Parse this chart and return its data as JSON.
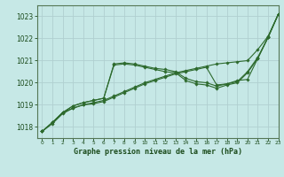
{
  "background_color": "#c6e8e6",
  "grid_color": "#b0d0d0",
  "line_color": "#2d6a2d",
  "text_color": "#1a4a1a",
  "xlabel": "Graphe pression niveau de la mer (hPa)",
  "ylim": [
    1017.5,
    1023.5
  ],
  "xlim": [
    -0.5,
    23
  ],
  "yticks": [
    1018,
    1019,
    1020,
    1021,
    1022,
    1023
  ],
  "xticks": [
    0,
    1,
    2,
    3,
    4,
    5,
    6,
    7,
    8,
    9,
    10,
    11,
    12,
    13,
    14,
    15,
    16,
    17,
    18,
    19,
    20,
    21,
    22,
    23
  ],
  "s1": [
    1017.8,
    1018.2,
    1018.65,
    1018.85,
    1019.0,
    1019.1,
    1019.2,
    1019.4,
    1019.6,
    1019.8,
    1020.0,
    1020.15,
    1020.3,
    1020.45,
    1020.55,
    1020.65,
    1020.75,
    1020.85,
    1020.9,
    1020.95,
    1021.0,
    1021.5,
    1022.1,
    1023.1
  ],
  "s2": [
    1017.8,
    1018.2,
    1018.65,
    1018.95,
    1019.1,
    1019.2,
    1019.3,
    1020.85,
    1020.9,
    1020.85,
    1020.75,
    1020.65,
    1020.6,
    1020.5,
    1020.2,
    1020.05,
    1020.0,
    1019.85,
    1019.95,
    1020.05,
    1020.5,
    1021.15,
    1022.05,
    1023.1
  ],
  "s3": [
    1017.8,
    1018.2,
    1018.65,
    1018.95,
    1019.1,
    1019.2,
    1019.3,
    1020.8,
    1020.85,
    1020.8,
    1020.7,
    1020.6,
    1020.5,
    1020.45,
    1020.1,
    1019.95,
    1019.9,
    1019.75,
    1019.9,
    1020.0,
    1020.45,
    1021.1,
    1022.05,
    1023.1
  ],
  "s4": [
    1017.8,
    1018.15,
    1018.6,
    1018.85,
    1019.0,
    1019.05,
    1019.15,
    1019.35,
    1019.55,
    1019.75,
    1019.95,
    1020.1,
    1020.25,
    1020.4,
    1020.5,
    1020.6,
    1020.7,
    1019.9,
    1019.95,
    1020.1,
    1020.15,
    1021.1,
    1022.05,
    1023.1
  ]
}
